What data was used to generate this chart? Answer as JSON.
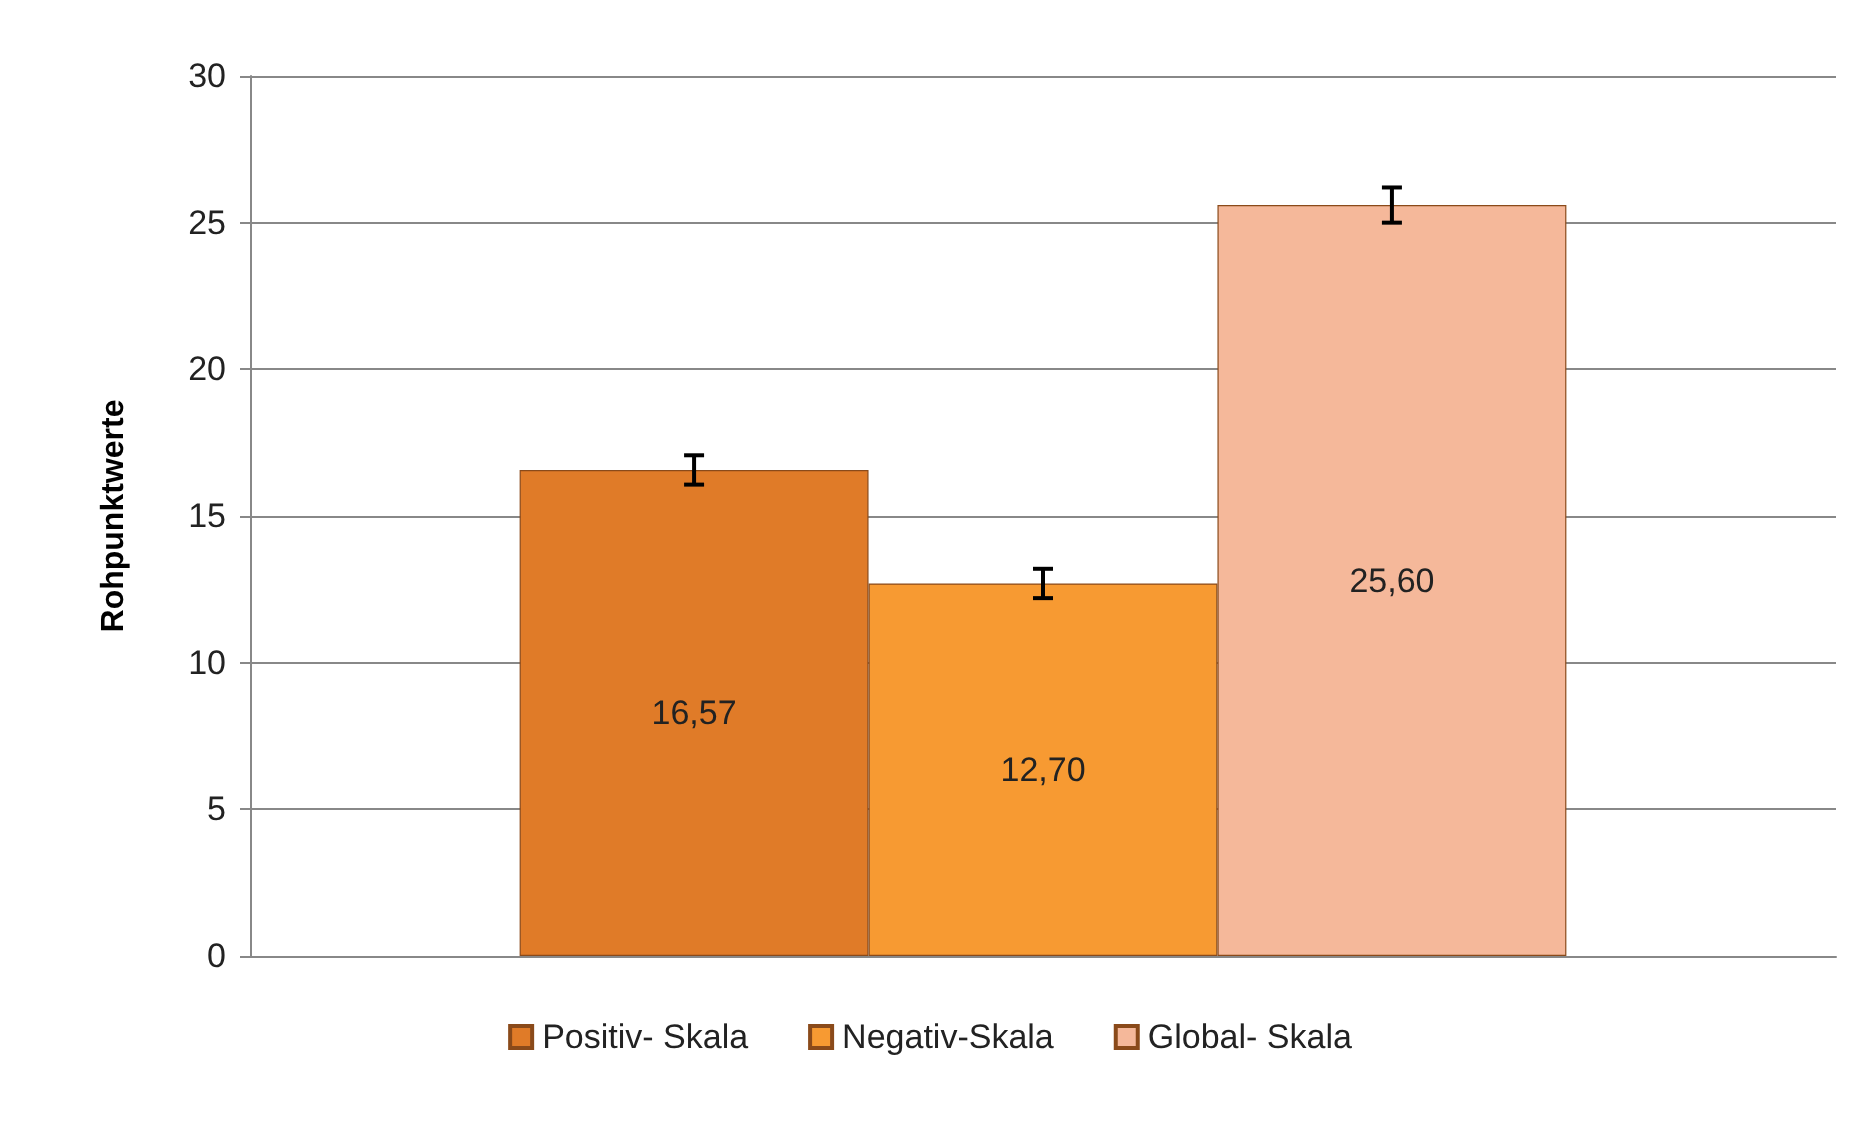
{
  "chart_data": {
    "type": "bar",
    "ylabel": "Rohpunktwerte",
    "categories": [
      null
    ],
    "series": [
      {
        "name": "Positiv- Skala",
        "color": "#e07b28",
        "values": [
          16.57
        ],
        "value_labels": [
          "16,57"
        ],
        "errors": [
          0.5
        ]
      },
      {
        "name": "Negativ-Skala",
        "color": "#f79a32",
        "values": [
          12.7
        ],
        "value_labels": [
          "12,70"
        ],
        "errors": [
          0.5
        ]
      },
      {
        "name": "Global- Skala",
        "color": "#f5b89a",
        "values": [
          25.6
        ],
        "value_labels": [
          "25,60"
        ],
        "errors": [
          0.6
        ]
      }
    ],
    "ylim": [
      0,
      30
    ],
    "yticks": [
      0,
      5,
      10,
      15,
      20,
      25,
      30
    ],
    "grid": "y",
    "legend": "bottom"
  }
}
